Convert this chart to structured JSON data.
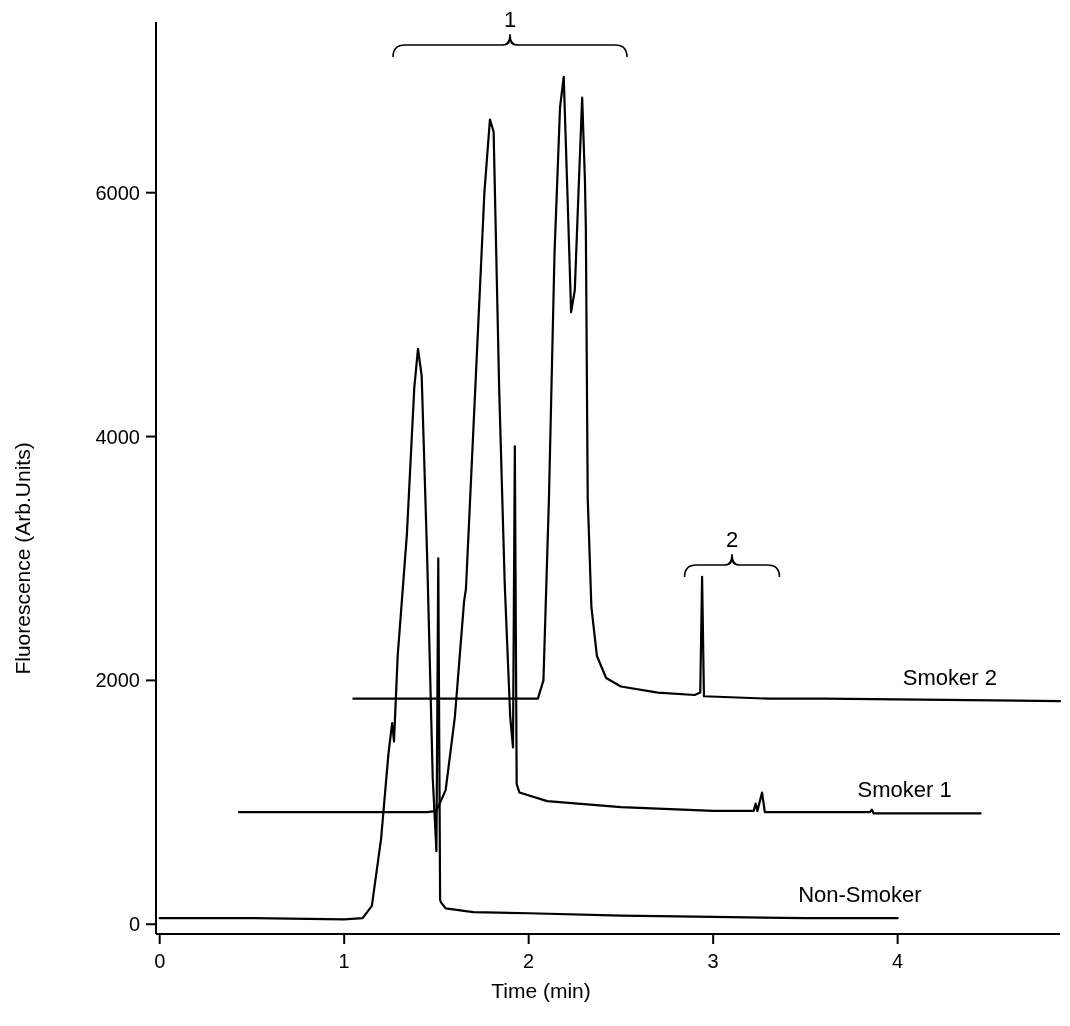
{
  "chart_data": {
    "type": "line",
    "xlabel": "Time (min)",
    "ylabel": "Fluorescence (Arb.Units)",
    "xlim": [
      -0.02,
      4.88
    ],
    "ylim": [
      -80,
      7400
    ],
    "xticks": [
      0,
      1,
      2,
      3,
      4
    ],
    "yticks": [
      0,
      2000,
      4000,
      6000
    ],
    "grid": false,
    "marker": "none",
    "line_style": "solid",
    "annotations": [
      "1",
      "2"
    ],
    "series": [
      {
        "name": "Non-Smoker",
        "color": "#000000",
        "x": [
          0,
          0.5,
          1.0,
          1.1,
          1.15,
          1.2,
          1.24,
          1.26,
          1.27,
          1.29,
          1.34,
          1.38,
          1.4,
          1.42,
          1.45,
          1.48,
          1.5,
          1.51,
          1.52,
          1.525,
          1.55,
          1.7,
          2.0,
          2.5,
          3.0,
          3.5,
          4.0
        ],
        "values": [
          50,
          50,
          40,
          50,
          150,
          700,
          1400,
          1650,
          1500,
          2200,
          3200,
          4400,
          4720,
          4500,
          3000,
          1200,
          600,
          3000,
          200,
          180,
          130,
          100,
          90,
          70,
          60,
          50,
          50
        ]
      },
      {
        "name": "Smoker 1",
        "color": "#000000",
        "x": [
          0.43,
          1.0,
          1.45,
          1.5,
          1.55,
          1.6,
          1.65,
          1.66,
          1.68,
          1.72,
          1.76,
          1.79,
          1.81,
          1.84,
          1.87,
          1.9,
          1.915,
          1.925,
          1.935,
          1.95,
          2.1,
          2.5,
          3.0,
          3.22,
          3.23,
          3.24,
          3.265,
          3.28,
          3.85,
          3.86,
          3.87,
          4.45
        ],
        "values": [
          920,
          920,
          920,
          930,
          1100,
          1700,
          2650,
          2750,
          3400,
          4700,
          6000,
          6600,
          6500,
          4400,
          2800,
          1700,
          1450,
          3920,
          1150,
          1080,
          1010,
          960,
          930,
          930,
          990,
          930,
          1080,
          920,
          920,
          940,
          910,
          910
        ]
      },
      {
        "name": "Smoker 2",
        "color": "#000000",
        "x": [
          1.05,
          2.05,
          2.08,
          2.11,
          2.14,
          2.17,
          2.19,
          2.21,
          2.23,
          2.25,
          2.27,
          2.29,
          2.305,
          2.31,
          2.32,
          2.34,
          2.37,
          2.42,
          2.5,
          2.7,
          2.9,
          2.93,
          2.94,
          2.95,
          3.3,
          3.6,
          4.88
        ],
        "values": [
          1850,
          1850,
          2000,
          3500,
          5500,
          6700,
          6950,
          6000,
          5020,
          5200,
          6000,
          6780,
          6100,
          5700,
          3500,
          2600,
          2200,
          2020,
          1950,
          1900,
          1880,
          1900,
          2850,
          1870,
          1850,
          1850,
          1830
        ]
      }
    ]
  }
}
